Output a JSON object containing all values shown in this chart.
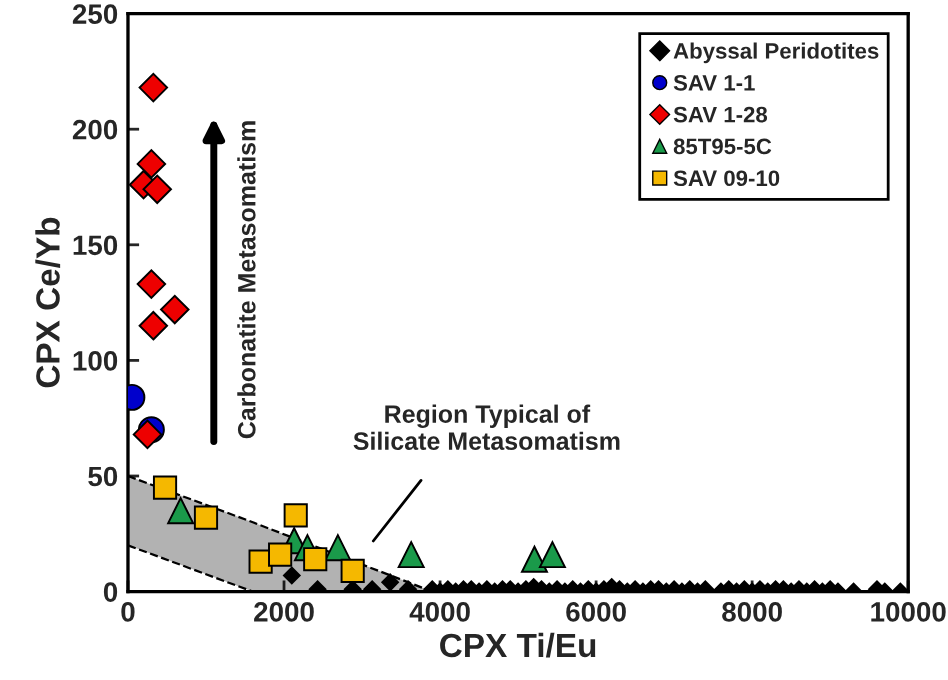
{
  "chart_data": {
    "type": "scatter",
    "xlabel": "CPX Ti/Eu",
    "ylabel": "CPX Ce/Yb",
    "xlim": [
      0,
      10000
    ],
    "xticks": [
      0,
      2000,
      4000,
      6000,
      8000,
      10000
    ],
    "ylim": [
      0,
      250
    ],
    "yticks": [
      0,
      50,
      100,
      150,
      200,
      250
    ],
    "grid": false,
    "legend": "top right",
    "annotations": [
      "Carbonatite Metasomatism",
      "Region Typical of\nSilicate Metasomatism"
    ],
    "series": [
      {
        "type": "line",
        "color": "#000000",
        "line_style": "dashed",
        "x": [
          0,
          1600,
          3900
        ],
        "values": [
          50,
          30,
          0
        ],
        "upper": [
          50,
          30,
          0
        ],
        "lower": [
          20,
          0,
          0
        ]
      },
      {
        "name": "Abyssal Peridotites",
        "color": "#000000",
        "marker": "diamond",
        "x": [
          2100,
          2430,
          2880,
          3130,
          3360,
          3590,
          3900,
          4000,
          4100,
          4200,
          4300,
          4400,
          4500,
          4600,
          4700,
          4800,
          4900,
          5000,
          5100,
          5200,
          5300,
          5400,
          5500,
          5600,
          5700,
          5800,
          5900,
          6000,
          6100,
          6200,
          6300,
          6400,
          6500,
          6600,
          6700,
          6800,
          6900,
          7000,
          7100,
          7200,
          7300,
          7400,
          7600,
          7700,
          7800,
          7900,
          8000,
          8100,
          8200,
          8300,
          8400,
          8500,
          8600,
          8700,
          8800,
          8900,
          9000,
          9100,
          9300,
          9600,
          9700,
          9900
        ],
        "values": [
          7,
          1,
          1,
          1,
          4,
          1,
          1,
          0,
          1,
          0,
          1,
          1,
          0,
          1,
          0,
          1,
          1,
          0,
          1,
          2,
          1,
          0,
          1,
          0,
          1,
          0,
          1,
          0,
          1,
          2,
          1,
          0,
          1,
          0,
          1,
          1,
          0,
          1,
          0,
          1,
          0,
          1,
          0,
          1,
          0,
          1,
          0,
          1,
          0,
          1,
          1,
          0,
          1,
          0,
          1,
          0,
          1,
          0,
          0,
          1,
          0,
          0
        ]
      },
      {
        "name": "SAV 1-1",
        "color": "#0000cc",
        "marker": "circle",
        "x": [
          50,
          300
        ],
        "values": [
          84,
          70
        ]
      },
      {
        "name": "SAV 1-28",
        "color": "#ee0000",
        "marker": "diamond",
        "x": [
          325,
          300,
          200,
          375,
          300,
          600,
          325,
          250
        ],
        "values": [
          218,
          185,
          176,
          174,
          133,
          122,
          115,
          68
        ]
      },
      {
        "name": "85T95-5C",
        "color": "#1a9a4a",
        "marker": "triangle",
        "x": [
          675,
          2130,
          2300,
          2690,
          3630,
          5210,
          5440
        ],
        "values": [
          35,
          22,
          19,
          19,
          16,
          14,
          16
        ]
      },
      {
        "name": "SAV 09-10",
        "color": "#f5b800",
        "marker": "square",
        "x": [
          475,
          1000,
          1700,
          1950,
          2150,
          2400,
          2880
        ],
        "values": [
          45,
          32,
          13,
          16,
          33,
          14,
          9
        ]
      }
    ]
  }
}
